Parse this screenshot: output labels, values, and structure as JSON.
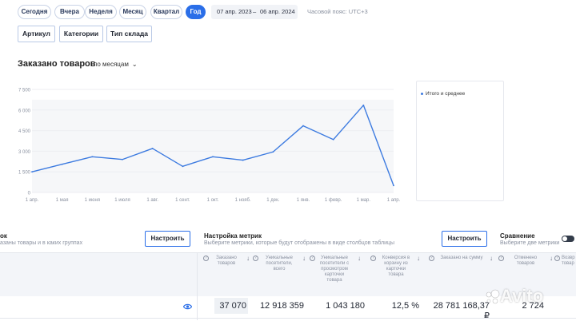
{
  "periods": [
    "Сегодня",
    "Вчера",
    "Неделя",
    "Месяц",
    "Квартал",
    "Год"
  ],
  "active_period": "Год",
  "date_range": {
    "from": "07 апр. 2023",
    "separator": "–",
    "to": "06 апр. 2024"
  },
  "timezone": "Часовой пояс: UTC+3",
  "filters": [
    "Артикул",
    "Категории",
    "Тип склада"
  ],
  "section": {
    "title": "Заказано товаров",
    "period_select": "по месяцам"
  },
  "legend": {
    "label": "Итого и среднее"
  },
  "colors": {
    "accent": "#2a6ee8",
    "series": "#3d7be0"
  },
  "chart_data": {
    "type": "line",
    "x": [
      "1 апр.",
      "1 мая",
      "1 июня",
      "1 июля",
      "1 авг.",
      "1 сент.",
      "1 окт.",
      "1 нояб.",
      "1 дек.",
      "1 янв.",
      "1 февр.",
      "1 мар.",
      "1 апр."
    ],
    "y_ticks": [
      0,
      1500,
      3000,
      4500,
      6000,
      7500
    ],
    "y_tick_labels": [
      "0",
      "1 500",
      "3 000",
      "4 500",
      "6 000",
      "7 500"
    ],
    "ylim": [
      0,
      7500
    ],
    "series": [
      {
        "name": "Итого и среднее",
        "values": [
          1500,
          2050,
          2600,
          2400,
          3200,
          1900,
          2600,
          2350,
          2950,
          4850,
          3850,
          6350,
          500
        ]
      }
    ]
  },
  "left_panel": {
    "title": "ок",
    "subtitle": "азаны товары и в каких группах",
    "button": "Настроить"
  },
  "metrics_panel": {
    "title": "Настройка метрик",
    "subtitle": "Выберите метрики, которые будут отображены в виде столбцов таблицы",
    "button": "Настроить"
  },
  "comparison": {
    "title": "Сравнение",
    "subtitle": "Выберите две метрики"
  },
  "table": {
    "columns": [
      {
        "label": "Заказано товаров"
      },
      {
        "label": "Уникальные посетители, всего"
      },
      {
        "label": "Уникальные посетители с просмотром карточки товара"
      },
      {
        "label": "Конверсия в корзину из карточки товара"
      },
      {
        "label": "Заказано на сумму"
      },
      {
        "label": "Отменено товаров"
      },
      {
        "label": "Возвр товар"
      }
    ],
    "values": [
      "37 070",
      "12 918 359",
      "1 043 180",
      "12,5 %",
      "28 781 168,37 ₽",
      "2 724"
    ]
  },
  "watermark": "Avito"
}
